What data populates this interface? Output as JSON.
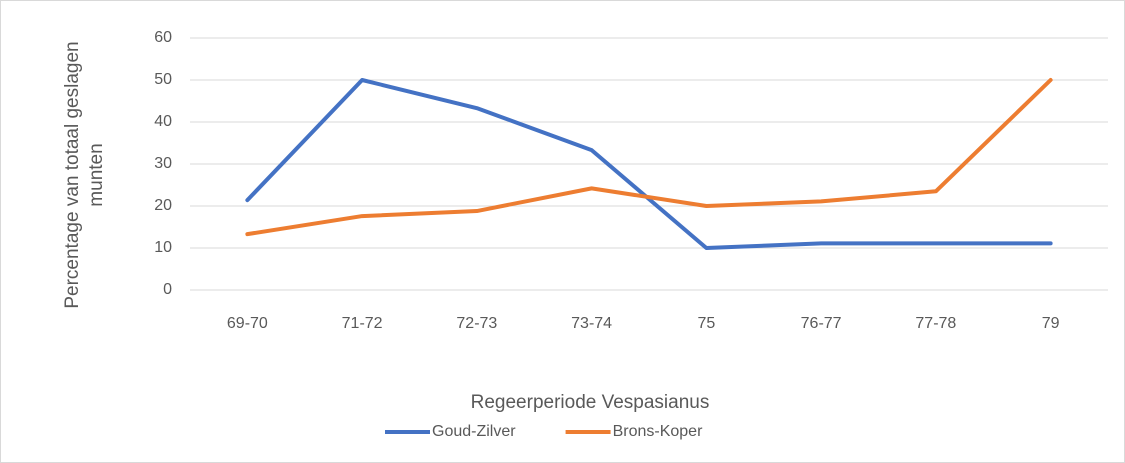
{
  "chart_data": {
    "type": "line",
    "x_label": "Regeerperiode Vespasianus",
    "y_label": "Percentage van totaal geslagen munten",
    "categories": [
      "69-70",
      "71-72",
      "72-73",
      "73-74",
      "75",
      "76-77",
      "77-78",
      "79"
    ],
    "series": [
      {
        "name": "Goud-Zilver",
        "color": "#4472c4",
        "values": [
          21.4,
          50,
          43.3,
          33.3,
          10,
          11.1,
          11.1,
          11.1
        ]
      },
      {
        "name": "Brons-Koper",
        "color": "#ed7d31",
        "values": [
          13.3,
          17.6,
          18.8,
          24.2,
          20,
          21.1,
          23.5,
          50
        ]
      }
    ],
    "ylim": [
      0,
      60
    ],
    "yticks": [
      0,
      10,
      20,
      30,
      40,
      50,
      60
    ],
    "grid": true,
    "legend": "bottom"
  }
}
